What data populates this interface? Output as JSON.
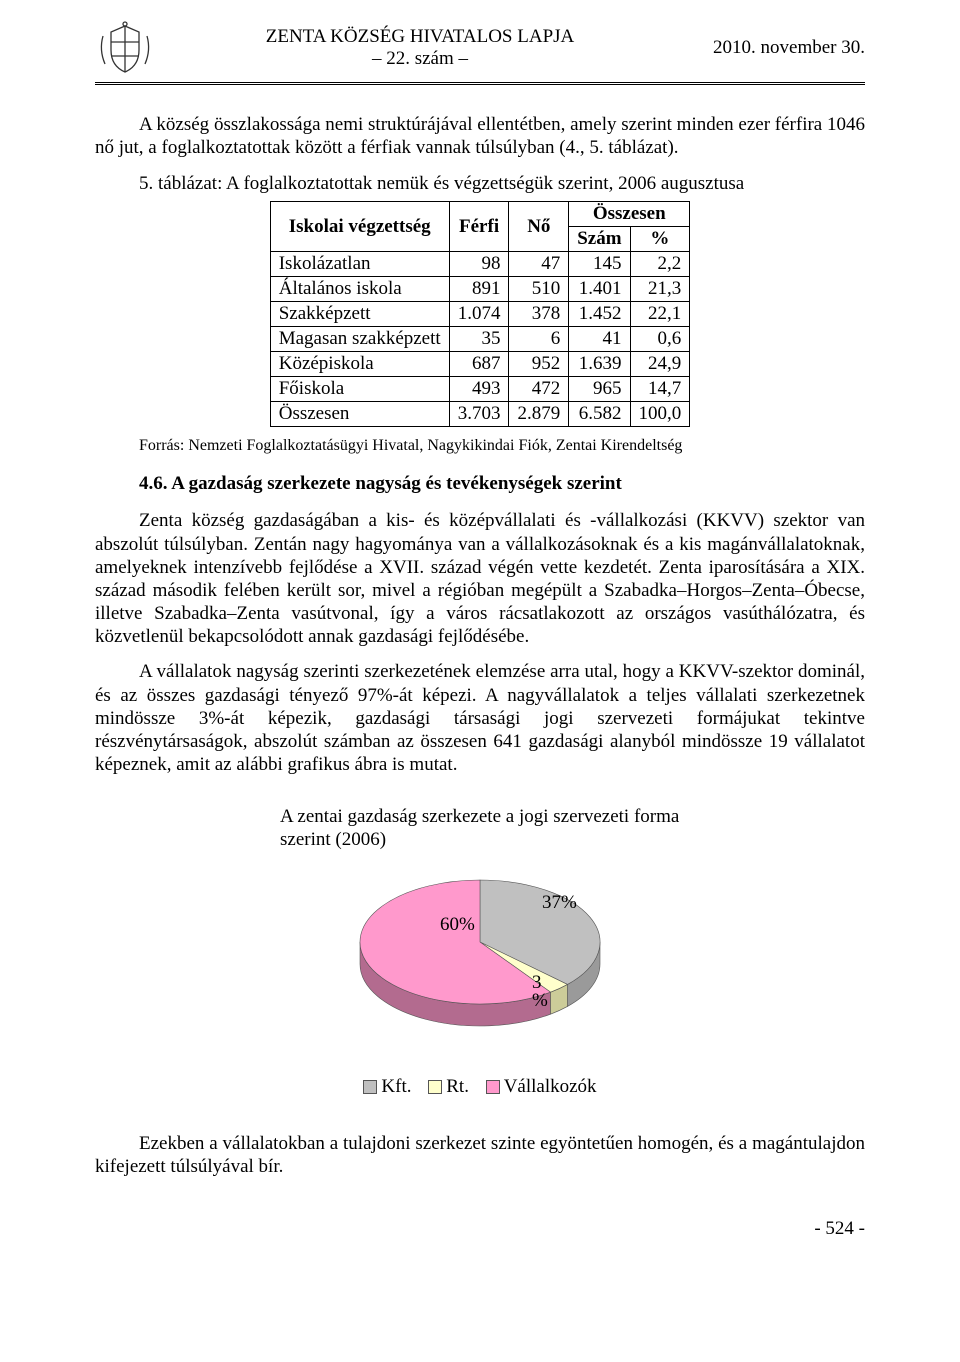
{
  "header": {
    "title": "ZENTA KÖZSÉG HIVATALOS LAPJA",
    "issue": "– 22. szám –",
    "date": "2010. november 30."
  },
  "para1": "A község összlakossága nemi struktúrájával ellentétben, amely szerint minden ezer férfira 1046 nő jut, a foglalkoztatottak között a férfiak vannak túlsúlyban (4., 5. táblázat).",
  "table_caption": "5. táblázat: A foglalkoztatottak nemük és végzettségük szerint, 2006 augusztusa",
  "table": {
    "col_headers": [
      "Iskolai végzettség",
      "Férfi",
      "Nő",
      "Összesen"
    ],
    "sub_headers": [
      "Szám",
      "%"
    ],
    "rows": [
      [
        "Iskolázatlan",
        "98",
        "47",
        "145",
        "2,2"
      ],
      [
        "Általános iskola",
        "891",
        "510",
        "1.401",
        "21,3"
      ],
      [
        "Szakképzett",
        "1.074",
        "378",
        "1.452",
        "22,1"
      ],
      [
        "Magasan szakképzett",
        "35",
        "6",
        "41",
        "0,6"
      ],
      [
        "Középiskola",
        "687",
        "952",
        "1.639",
        "24,9"
      ],
      [
        "Főiskola",
        "493",
        "472",
        "965",
        "14,7"
      ],
      [
        "Összesen",
        "3.703",
        "2.879",
        "6.582",
        "100,0"
      ]
    ]
  },
  "source": "Forrás: Nemzeti Foglalkoztatásügyi Hivatal, Nagykikindai Fiók, Zentai Kirendeltség",
  "section_heading": "4.6.  A gazdaság szerkezete nagyság és tevékenységek szerint",
  "para2": "Zenta község gazdaságában a kis- és középvállalati és -vállalkozási (KKVV) szektor van abszolút túlsúlyban. Zentán nagy hagyománya van a vállalkozásoknak és a kis magánvállalatoknak, amelyeknek intenzívebb fejlődése a XVII. század végén vette kezdetét. Zenta iparosítására a XIX. század második felében került sor, mivel a régióban megépült a Szabadka–Horgos–Zenta–Óbecse, illetve Szabadka–Zenta vasútvonal, így a város rácsatlakozott az országos vasúthálózatra, és közvetlenül bekapcsolódott annak gazdasági fejlődésébe.",
  "para3": "A vállalatok nagyság szerinti szerkezetének elemzése arra utal, hogy a KKVV-szektor dominál, és az összes gazdasági tényező 97%-át képezi. A nagyvállalatok a teljes vállalati szerkezetnek mindössze 3%-át képezik, gazdasági társasági jogi szervezeti formájukat tekintve részvénytársaságok, abszolút számban az összesen 641 gazdasági alanyból mindössze 19 vállalatot képeznek, amit az alábbi grafikus ábra is mutat.",
  "chart": {
    "type": "pie-3d",
    "title": "A zentai gazdaság szerkezete a jogi szervezeti forma szerint (2006)",
    "slices": [
      {
        "label": "Kft.",
        "value": 37,
        "display": "37%",
        "color": "#c0c0c0",
        "side_color": "#9a9a9a"
      },
      {
        "label": "Rt.",
        "value": 3,
        "display": "3%",
        "color": "#ffffcc",
        "side_color": "#cccc99"
      },
      {
        "label": "Vállalkozók",
        "value": 60,
        "display": "60%",
        "color": "#ff99cc",
        "side_color": "#b36b8f"
      }
    ],
    "legend_sep": "  ",
    "background": "#ffffff",
    "label_fontsize": 19,
    "title_fontsize": 19,
    "outline_color": "#555555"
  },
  "para4": "Ezekben a vállalatokban a tulajdoni szerkezet szinte egyöntetűen homogén, és a magántulajdon kifejezett túlsúlyával bír.",
  "page_number": "- 524 -"
}
